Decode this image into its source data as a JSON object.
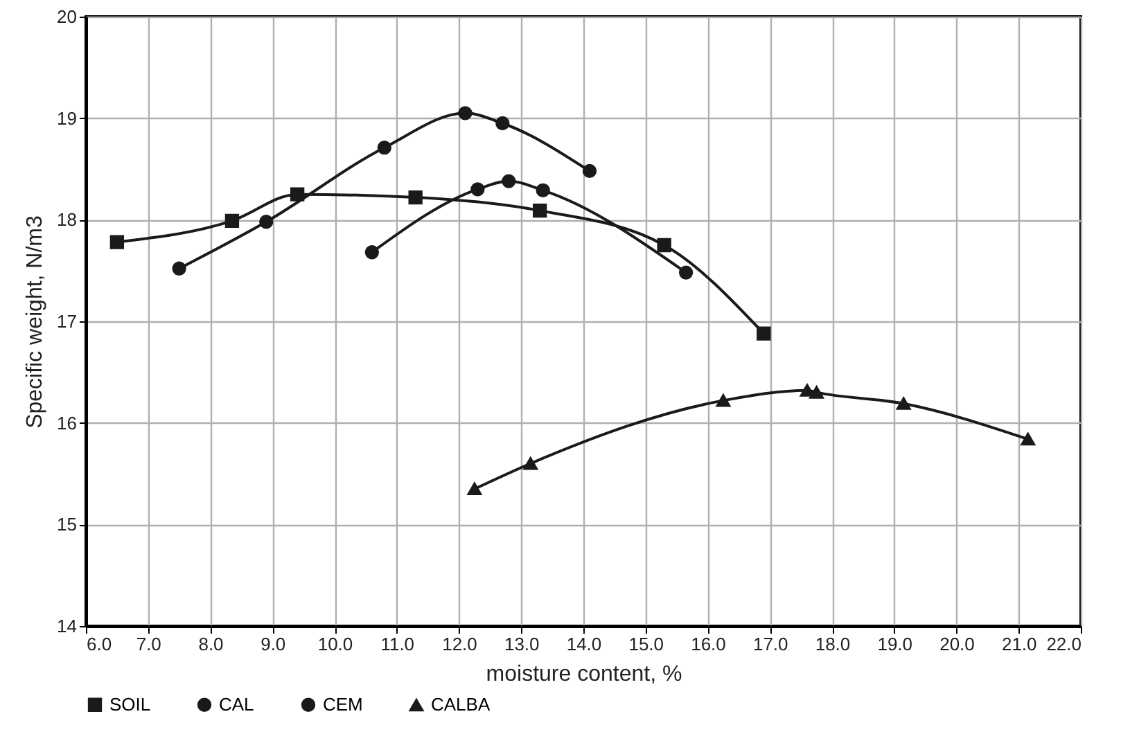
{
  "chart_data": {
    "type": "line",
    "xlabel": "moisture content, %",
    "ylabel": "Specific weight, N/m3",
    "xlim": [
      6,
      22
    ],
    "ylim": [
      14,
      20
    ],
    "xticks": [
      {
        "value": 6,
        "label": "6.0"
      },
      {
        "value": 7,
        "label": "7.0"
      },
      {
        "value": 8,
        "label": "8.0"
      },
      {
        "value": 9,
        "label": "9.0"
      },
      {
        "value": 10,
        "label": "10.0"
      },
      {
        "value": 11,
        "label": "11.0"
      },
      {
        "value": 12,
        "label": "12.0"
      },
      {
        "value": 13,
        "label": "13.0"
      },
      {
        "value": 14,
        "label": "14.0"
      },
      {
        "value": 15,
        "label": "15.0"
      },
      {
        "value": 16,
        "label": "16.0"
      },
      {
        "value": 17,
        "label": "17.0"
      },
      {
        "value": 18,
        "label": "18.0"
      },
      {
        "value": 19,
        "label": "19.0"
      },
      {
        "value": 20,
        "label": "20.0"
      },
      {
        "value": 21,
        "label": "21.0"
      },
      {
        "value": 22,
        "label": "22.0"
      }
    ],
    "yticks": [
      14,
      15,
      16,
      17,
      18,
      19,
      20
    ],
    "grid": true,
    "legend": "bottom",
    "line_style": "solid",
    "series": [
      {
        "name": "SOIL",
        "color": "#1a1a1a",
        "marker": "square",
        "x": [
          6.5,
          8.35,
          9.4,
          11.3,
          13.3,
          15.3,
          16.9
        ],
        "values": [
          17.78,
          17.99,
          18.25,
          18.22,
          18.09,
          17.75,
          16.88
        ]
      },
      {
        "name": "CAL",
        "color": "#1a1a1a",
        "marker": "circle",
        "x": [
          10.6,
          12.3,
          12.8,
          13.35,
          15.65
        ],
        "values": [
          17.68,
          18.3,
          18.38,
          18.29,
          17.48
        ]
      },
      {
        "name": "CEM",
        "color": "#1a1a1a",
        "marker": "circle",
        "x": [
          7.5,
          8.9,
          10.8,
          12.1,
          12.7,
          14.1
        ],
        "values": [
          17.52,
          17.98,
          18.71,
          19.05,
          18.95,
          18.48
        ]
      },
      {
        "name": "CALBA",
        "color": "#1a1a1a",
        "marker": "triangle",
        "x": [
          12.25,
          13.15,
          16.25,
          17.6,
          17.75,
          19.15,
          21.15
        ],
        "values": [
          15.35,
          15.6,
          16.22,
          16.32,
          16.3,
          16.19,
          15.84
        ]
      }
    ]
  }
}
